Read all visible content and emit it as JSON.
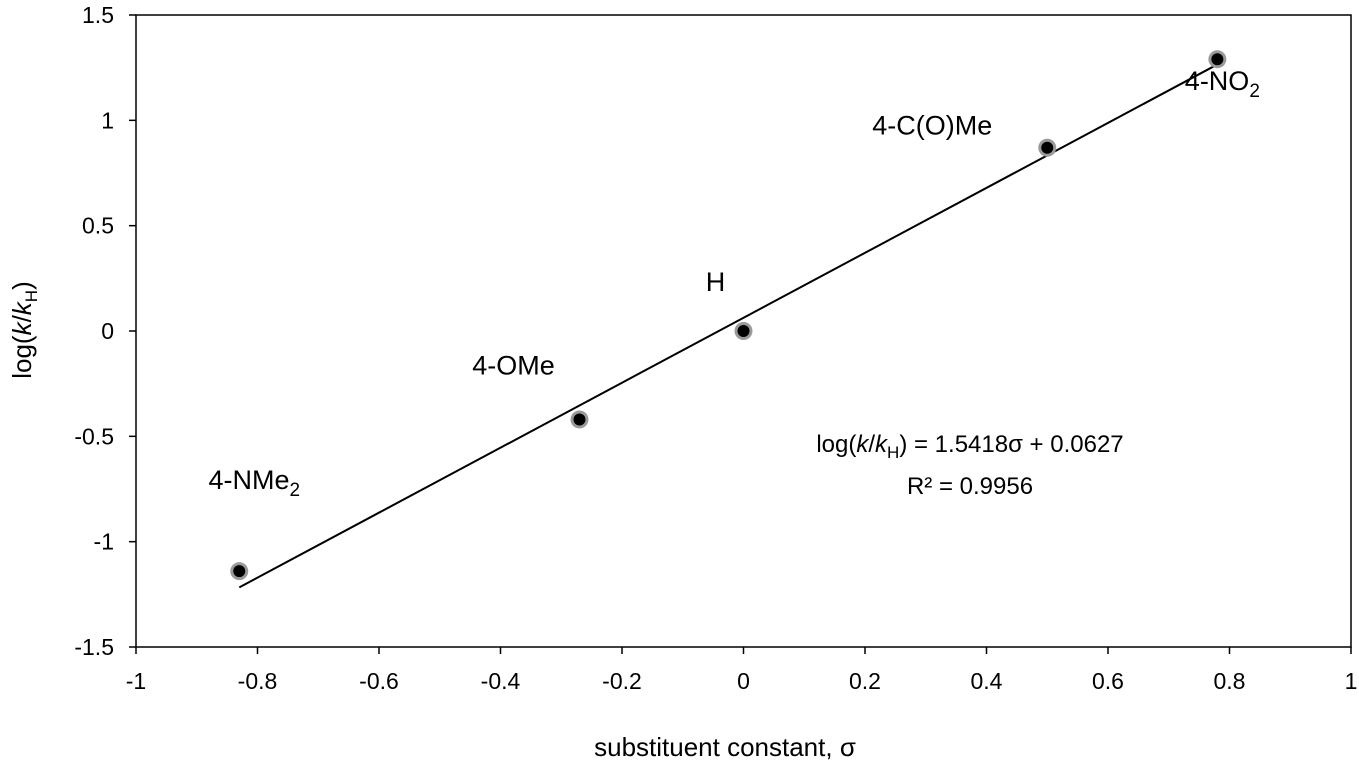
{
  "chart_data": {
    "type": "scatter",
    "xlabel": "substituent constant, σ",
    "ylabel": {
      "pre": "log(",
      "k1": "k",
      "slash": "/",
      "k2": "k",
      "sub": "H",
      "post": ")"
    },
    "xlim": [
      -1,
      1
    ],
    "ylim": [
      -1.5,
      1.5
    ],
    "x_ticks": [
      -1,
      -0.8,
      -0.6,
      -0.4,
      -0.2,
      0,
      0.2,
      0.4,
      0.6,
      0.8,
      1
    ],
    "y_ticks": [
      -1.5,
      -1,
      -0.5,
      0,
      0.5,
      1,
      1.5
    ],
    "x_tick_labels": [
      "-1",
      "-0.8",
      "-0.6",
      "-0.4",
      "-0.2",
      "0",
      "0.2",
      "0.4",
      "0.6",
      "0.8",
      "1"
    ],
    "y_tick_labels": [
      "-1.5",
      "-1",
      "-0.5",
      "0",
      "0.5",
      "1",
      "1.5"
    ],
    "grid": false,
    "points": [
      {
        "x": -0.83,
        "y": -1.14,
        "label_main": "4-NMe",
        "label_sub": "2"
      },
      {
        "x": -0.27,
        "y": -0.42,
        "label_main": "4-OMe",
        "label_sub": ""
      },
      {
        "x": 0.0,
        "y": 0.0,
        "label_main": "H",
        "label_sub": ""
      },
      {
        "x": 0.5,
        "y": 0.87,
        "label_main": "4-C(O)Me",
        "label_sub": ""
      },
      {
        "x": 0.78,
        "y": 1.29,
        "label_main": "4-NO",
        "label_sub": "2"
      }
    ],
    "trendline": {
      "slope": 1.5418,
      "intercept": 0.0627,
      "x_range": [
        -0.83,
        0.78
      ]
    },
    "equation": {
      "pre": "log(",
      "k1": "k",
      "slash": "/",
      "k2": "k",
      "sub": "H",
      "post": ") = 1.5418σ + 0.0627",
      "r2": "R² = 0.9956"
    },
    "colors": {
      "marker_fill": "#000000",
      "marker_ring": "#9a9a9a",
      "line": "#000000"
    }
  }
}
